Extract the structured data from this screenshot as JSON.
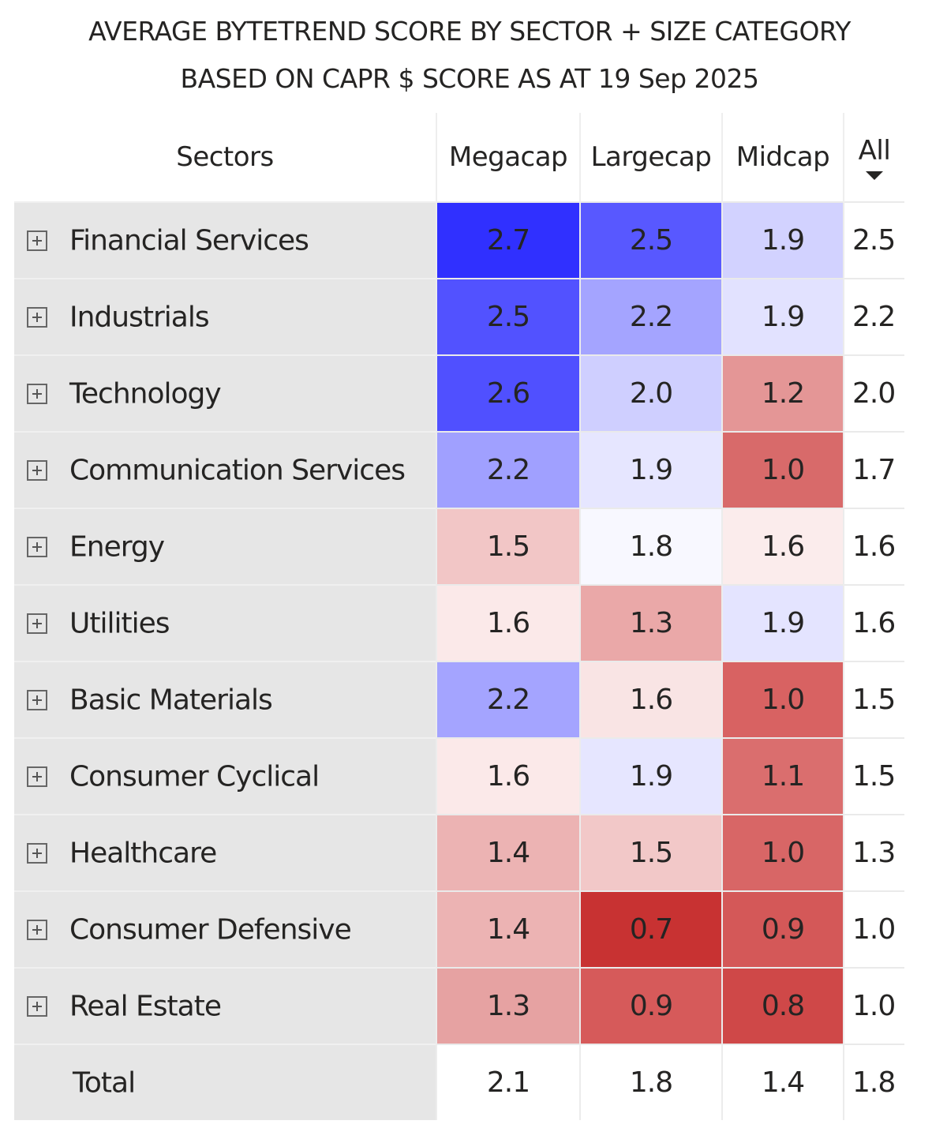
{
  "title_line1": "AVERAGE BYTETREND SCORE BY SECTOR + SIZE CATEGORY",
  "title_line2": "BASED ON CAPR $ SCORE AS AT 19 Sep 2025",
  "chart_data": {
    "type": "heatmap",
    "title": "AVERAGE BYTETREND SCORE BY SECTOR + SIZE CATEGORY BASED ON CAPR $ SCORE AS AT 19 Sep 2025",
    "row_header": "Sectors",
    "columns": [
      "Megacap",
      "Largecap",
      "Midcap",
      "All"
    ],
    "sorted_column": "All",
    "sort_direction": "descending",
    "rows": [
      {
        "label": "Financial Services",
        "values": [
          "2.7",
          "2.5",
          "1.9",
          "2.5"
        ],
        "colors": [
          "#3030ff",
          "#5858ff",
          "#d2d2ff"
        ]
      },
      {
        "label": "Industrials",
        "values": [
          "2.5",
          "2.2",
          "1.9",
          "2.2"
        ],
        "colors": [
          "#5252ff",
          "#a4a4ff",
          "#e2e2ff"
        ]
      },
      {
        "label": "Technology",
        "values": [
          "2.6",
          "2.0",
          "1.2",
          "2.0"
        ],
        "colors": [
          "#5050ff",
          "#cfcfff",
          "#e49696"
        ]
      },
      {
        "label": "Communication Services",
        "values": [
          "2.2",
          "1.9",
          "1.0",
          "1.7"
        ],
        "colors": [
          "#a0a0ff",
          "#e6e6ff",
          "#d86a6a"
        ]
      },
      {
        "label": "Energy",
        "values": [
          "1.5",
          "1.8",
          "1.6",
          "1.6"
        ],
        "colors": [
          "#f2c6c6",
          "#f8f8ff",
          "#fbecec"
        ]
      },
      {
        "label": "Utilities",
        "values": [
          "1.6",
          "1.3",
          "1.9",
          "1.6"
        ],
        "colors": [
          "#fbe9e9",
          "#eaa8a8",
          "#e4e4ff"
        ]
      },
      {
        "label": "Basic Materials",
        "values": [
          "2.2",
          "1.6",
          "1.0",
          "1.5"
        ],
        "colors": [
          "#a4a4ff",
          "#f9e4e4",
          "#d86262"
        ]
      },
      {
        "label": "Consumer Cyclical",
        "values": [
          "1.6",
          "1.9",
          "1.1",
          "1.5"
        ],
        "colors": [
          "#fbe9e9",
          "#e6e6ff",
          "#da6e6e"
        ]
      },
      {
        "label": "Healthcare",
        "values": [
          "1.4",
          "1.5",
          "1.0",
          "1.3"
        ],
        "colors": [
          "#ecb3b3",
          "#f2c8c8",
          "#d86666"
        ]
      },
      {
        "label": "Consumer Defensive",
        "values": [
          "1.4",
          "0.7",
          "0.9",
          "1.0"
        ],
        "colors": [
          "#ecb3b3",
          "#c83232",
          "#d45858"
        ]
      },
      {
        "label": "Real Estate",
        "values": [
          "1.3",
          "0.9",
          "0.8",
          "1.0"
        ],
        "colors": [
          "#e6a2a2",
          "#d65a5a",
          "#cf4848"
        ]
      }
    ],
    "total": {
      "label": "Total",
      "values": [
        "2.1",
        "1.8",
        "1.4",
        "1.8"
      ]
    }
  }
}
